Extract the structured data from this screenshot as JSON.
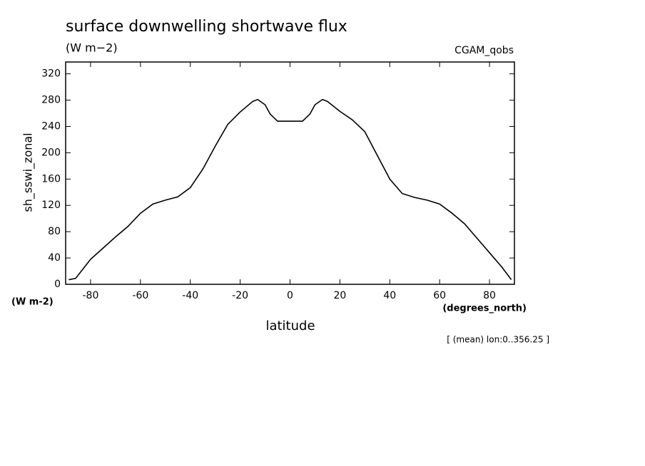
{
  "chart_data": {
    "type": "line",
    "title": "surface downwelling shortwave flux",
    "subtitle": "(W m−2)",
    "dataset": "CGAM_qobs",
    "ylabel": "sh_sswi_zonal",
    "yunits": "(W m-2)",
    "xunits": "(degrees_north)",
    "xlabel": "latitude",
    "note": "[ (mean) lon:0..356.25 ]",
    "x": [
      -88.75,
      -86,
      -80,
      -75,
      -70,
      -65,
      -60,
      -55,
      -50,
      -45,
      -40,
      -35,
      -30,
      -25,
      -20,
      -15,
      -13,
      -10,
      -8,
      -5,
      0,
      5,
      8,
      10,
      13,
      15,
      20,
      25,
      30,
      35,
      40,
      45,
      50,
      55,
      60,
      65,
      70,
      75,
      80,
      85,
      88.75
    ],
    "series": [
      {
        "name": "sh_sswi_zonal",
        "color": "#000000",
        "values": [
          7,
          9,
          38,
          55,
          72,
          88,
          108,
          122,
          128,
          133,
          147,
          175,
          210,
          243,
          262,
          278,
          281,
          273,
          259,
          248,
          248,
          248,
          259,
          273,
          281,
          278,
          263,
          250,
          232,
          196,
          160,
          138,
          132,
          128,
          122,
          108,
          92,
          70,
          48,
          26,
          7
        ]
      }
    ],
    "xlim": [
      -90,
      90
    ],
    "xticks": [
      -80,
      -60,
      -40,
      -20,
      0,
      20,
      40,
      60,
      80
    ],
    "ylim": [
      0,
      338
    ],
    "yticks": [
      0,
      40,
      80,
      120,
      160,
      200,
      240,
      280,
      320
    ]
  }
}
